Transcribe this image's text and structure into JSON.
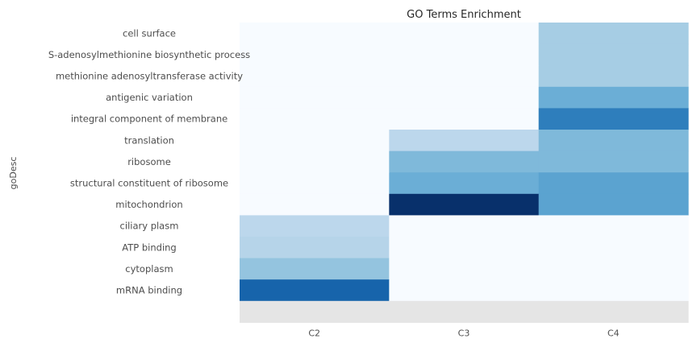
{
  "chart_data": {
    "type": "heatmap",
    "title": "GO Terms Enrichment",
    "xlabel": "",
    "ylabel": "goDesc",
    "x_categories": [
      "C2",
      "C3",
      "C4"
    ],
    "y_categories": [
      "cell surface",
      "S-adenosylmethionine biosynthetic process",
      "methionine adenosyltransferase activity",
      "antigenic variation",
      "integral component of membrane",
      "translation",
      "ribosome",
      "structural constituent of ribosome",
      "mitochondrion",
      "ciliary plasm",
      "ATP binding",
      "cytoplasm",
      "mRNA binding",
      ""
    ],
    "values": [
      [
        0.0,
        0.0,
        0.35
      ],
      [
        0.0,
        0.0,
        0.35
      ],
      [
        0.0,
        0.0,
        0.35
      ],
      [
        0.0,
        0.0,
        0.5
      ],
      [
        0.0,
        0.0,
        0.7
      ],
      [
        0.0,
        0.28,
        0.45
      ],
      [
        0.0,
        0.45,
        0.45
      ],
      [
        0.0,
        0.5,
        0.55
      ],
      [
        0.0,
        1.0,
        0.55
      ],
      [
        0.28,
        0.0,
        0.0
      ],
      [
        0.3,
        0.0,
        0.0
      ],
      [
        0.4,
        0.0,
        0.0
      ],
      [
        0.8,
        0.0,
        0.0
      ],
      [
        null,
        null,
        null
      ]
    ],
    "colormap": "Blues",
    "missing_color": "#e5e5e5",
    "grid": false,
    "legend": "none"
  }
}
